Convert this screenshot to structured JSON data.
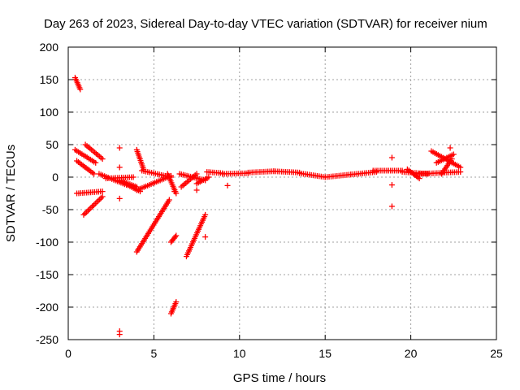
{
  "chart_data": {
    "type": "scatter",
    "title": "Day 263 of 2023, Sidereal Day-to-day VTEC variation (SDTVAR) for receiver nium",
    "xlabel": "GPS time / hours",
    "ylabel": "SDTVAR / TECUs",
    "xlim": [
      0,
      25
    ],
    "ylim": [
      -250,
      200
    ],
    "xticks": [
      0,
      5,
      10,
      15,
      20,
      25
    ],
    "yticks": [
      200,
      150,
      100,
      50,
      0,
      -50,
      -100,
      -150,
      -200,
      -250
    ],
    "xtick_labels": [
      "0",
      "5",
      "10",
      "15",
      "20",
      "25"
    ],
    "ytick_labels": [
      "200",
      "150",
      "100",
      "50",
      "0",
      "-50",
      "-100",
      "-150",
      "-200",
      "-250"
    ],
    "grid": true,
    "marker": "+",
    "color": "#ff0000",
    "segments": [
      {
        "x0": 0.4,
        "y0": 153,
        "x1": 0.7,
        "y1": 135
      },
      {
        "x0": 0.4,
        "y0": 42,
        "x1": 1.6,
        "y1": 22
      },
      {
        "x0": 0.5,
        "y0": 25,
        "x1": 1.5,
        "y1": 5
      },
      {
        "x0": 1.0,
        "y0": 50,
        "x1": 2.0,
        "y1": 28
      },
      {
        "x0": 0.5,
        "y0": -25,
        "x1": 2.0,
        "y1": -22
      },
      {
        "x0": 0.9,
        "y0": -58,
        "x1": 2.0,
        "y1": -30
      },
      {
        "x0": 1.8,
        "y0": 5,
        "x1": 3.4,
        "y1": -12
      },
      {
        "x0": 2.2,
        "y0": -2,
        "x1": 3.8,
        "y1": 0
      },
      {
        "x0": 3.3,
        "y0": -10,
        "x1": 4.2,
        "y1": -22
      },
      {
        "x0": 3.0,
        "y0": -5,
        "x1": 4.0,
        "y1": -15
      },
      {
        "x0": 4.0,
        "y0": 42,
        "x1": 4.4,
        "y1": 12
      },
      {
        "x0": 4.3,
        "y0": 10,
        "x1": 6.0,
        "y1": 0
      },
      {
        "x0": 4.0,
        "y0": -20,
        "x1": 6.0,
        "y1": 2
      },
      {
        "x0": 4.0,
        "y0": -115,
        "x1": 5.9,
        "y1": -35
      },
      {
        "x0": 5.8,
        "y0": 5,
        "x1": 6.3,
        "y1": -25
      },
      {
        "x0": 6.0,
        "y0": -210,
        "x1": 6.3,
        "y1": -192
      },
      {
        "x0": 6.0,
        "y0": -100,
        "x1": 6.3,
        "y1": -90
      },
      {
        "x0": 6.5,
        "y0": 5,
        "x1": 8.0,
        "y1": -5
      },
      {
        "x0": 6.6,
        "y0": -15,
        "x1": 7.5,
        "y1": 5
      },
      {
        "x0": 6.9,
        "y0": -122,
        "x1": 8.0,
        "y1": -58
      },
      {
        "x0": 7.5,
        "y0": -10,
        "x1": 8.2,
        "y1": 0
      },
      {
        "x0": 8.1,
        "y0": 8,
        "x1": 9.0,
        "y1": 6
      },
      {
        "x0": 9.0,
        "y0": 5,
        "x1": 10.5,
        "y1": 6
      },
      {
        "x0": 10.5,
        "y0": 7,
        "x1": 12.0,
        "y1": 9
      },
      {
        "x0": 12.0,
        "y0": 9,
        "x1": 13.5,
        "y1": 7
      },
      {
        "x0": 13.5,
        "y0": 6,
        "x1": 15.0,
        "y1": 0
      },
      {
        "x0": 15.0,
        "y0": 0,
        "x1": 16.5,
        "y1": 4
      },
      {
        "x0": 16.5,
        "y0": 4,
        "x1": 18.0,
        "y1": 8
      },
      {
        "x0": 17.8,
        "y0": 10,
        "x1": 19.5,
        "y1": 10
      },
      {
        "x0": 19.5,
        "y0": 8,
        "x1": 21.0,
        "y1": 5
      },
      {
        "x0": 19.8,
        "y0": 12,
        "x1": 20.5,
        "y1": -2
      },
      {
        "x0": 20.5,
        "y0": 5,
        "x1": 22.9,
        "y1": 8
      },
      {
        "x0": 21.2,
        "y0": 40,
        "x1": 22.9,
        "y1": 15
      },
      {
        "x0": 21.5,
        "y0": 22,
        "x1": 22.5,
        "y1": 35
      },
      {
        "x0": 21.8,
        "y0": 5,
        "x1": 22.4,
        "y1": 28
      }
    ],
    "isolated_points": [
      {
        "x": 3.0,
        "y": 45
      },
      {
        "x": 3.0,
        "y": 15
      },
      {
        "x": 3.0,
        "y": -33
      },
      {
        "x": 3.0,
        "y": -237
      },
      {
        "x": 3.0,
        "y": -242
      },
      {
        "x": 7.5,
        "y": -20
      },
      {
        "x": 8.0,
        "y": -92
      },
      {
        "x": 9.3,
        "y": -13
      },
      {
        "x": 18.9,
        "y": 30
      },
      {
        "x": 18.9,
        "y": -12
      },
      {
        "x": 18.9,
        "y": -45
      },
      {
        "x": 22.3,
        "y": 45
      },
      {
        "x": 6.2,
        "y": -22
      }
    ]
  }
}
